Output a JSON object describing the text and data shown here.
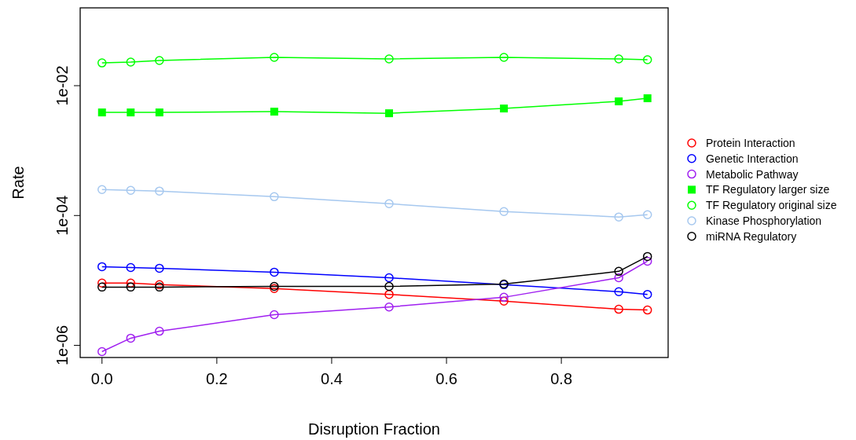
{
  "chart_data": {
    "type": "line",
    "xlabel": "Disruption Fraction",
    "ylabel": "Rate",
    "log": "y",
    "grid": false,
    "legend": "right",
    "line_style": "solid",
    "x": [
      0,
      0.05,
      0.1,
      0.3,
      0.5,
      0.7,
      0.9,
      0.95
    ],
    "xlim": [
      -0.038,
      0.986
    ],
    "ylim": [
      6.5e-07,
      0.158
    ],
    "xticks": [
      {
        "value": 0,
        "label": "0.0"
      },
      0.2,
      0.4,
      0.6,
      0.8
    ],
    "yticks": [
      {
        "value": 1e-06,
        "label": "1e-06"
      },
      {
        "value": 0.0001,
        "label": "1e-04"
      },
      {
        "value": 0.01,
        "label": "1e-02"
      }
    ],
    "series": [
      {
        "name": "Protein Interaction",
        "color": "#ff0000",
        "marker": "circle",
        "values": [
          9.1e-06,
          9.1e-06,
          8.6e-06,
          7.5e-06,
          6.1e-06,
          4.8e-06,
          3.6e-06,
          3.5e-06
        ]
      },
      {
        "name": "Genetic Interaction",
        "color": "#0000ff",
        "marker": "circle",
        "values": [
          1.63e-05,
          1.58e-05,
          1.54e-05,
          1.34e-05,
          1.1e-05,
          8.6e-06,
          6.7e-06,
          6.1e-06
        ]
      },
      {
        "name": "Metabolic Pathway",
        "color": "#a020f0",
        "marker": "circle",
        "values": [
          8e-07,
          1.29e-06,
          1.65e-06,
          2.97e-06,
          3.9e-06,
          5.5e-06,
          1.1e-05,
          1.98e-05
        ]
      },
      {
        "name": "TF Regulatory larger size",
        "color": "#00ff00",
        "marker": "square",
        "values": [
          0.00387,
          0.00387,
          0.00387,
          0.00398,
          0.00376,
          0.00445,
          0.00573,
          0.0064
        ]
      },
      {
        "name": "TF Regulatory original size",
        "color": "#00ff00",
        "marker": "circle",
        "values": [
          0.0224,
          0.0231,
          0.0244,
          0.0273,
          0.0258,
          0.0273,
          0.0258,
          0.0251
        ]
      },
      {
        "name": "Kinase Phosphorylation",
        "color": "#a6c8ef",
        "marker": "circle",
        "values": [
          0.000251,
          0.000244,
          0.000238,
          0.000195,
          0.000152,
          0.000115,
          9.5e-05,
          0.000103
        ]
      },
      {
        "name": "miRNA Regulatory",
        "color": "#000000",
        "marker": "circle",
        "values": [
          7.9e-06,
          7.9e-06,
          7.9e-06,
          8.1e-06,
          8.1e-06,
          8.8e-06,
          1.38e-05,
          2.34e-05
        ]
      }
    ]
  }
}
